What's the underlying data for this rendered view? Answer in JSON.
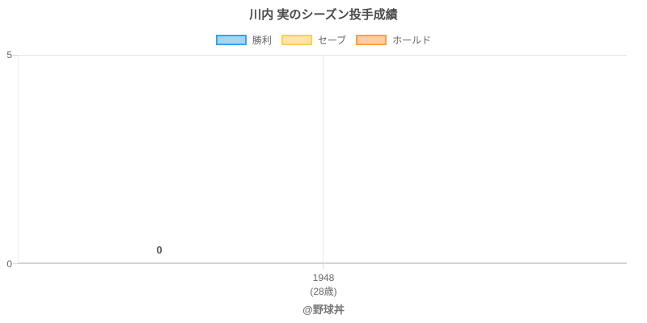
{
  "title": "川内 実のシーズン投手成績",
  "legend": {
    "items": [
      {
        "label": "勝利",
        "fill": "#A5D5F6",
        "border": "#36A2EB"
      },
      {
        "label": "セーブ",
        "fill": "#FFE3A9",
        "border": "#FFCE56"
      },
      {
        "label": "ホールド",
        "fill": "#FFCDA0",
        "border": "#FF9F40"
      }
    ]
  },
  "y_axis": {
    "max_label": "5",
    "min_label": "0"
  },
  "x_axis": {
    "tick_line1": "1948",
    "tick_line2": "(28歳)"
  },
  "value_label": "0",
  "footer": "@野球丼",
  "chart_data": {
    "type": "bar",
    "title": "川内 実のシーズン投手成績",
    "categories": [
      "1948 (28歳)"
    ],
    "series": [
      {
        "name": "勝利",
        "values": [
          0
        ],
        "border_color": "#36A2EB",
        "fill_color": "#A5D5F6"
      },
      {
        "name": "セーブ",
        "values": [
          0
        ],
        "border_color": "#FFCE56",
        "fill_color": "#FFE3A9"
      },
      {
        "name": "ホールド",
        "values": [
          0
        ],
        "border_color": "#FF9F40",
        "fill_color": "#FFCDA0"
      }
    ],
    "ylim": [
      0,
      5
    ],
    "xlabel": "",
    "ylabel": "",
    "legend_position": "top",
    "grid": "horizontal line at y=5 only; one vertical gridline at category center; x-axis baseline at y=0",
    "annotations": [
      {
        "text": "0",
        "series": "勝利",
        "category": "1948 (28歳)",
        "position": "above first bar"
      }
    ]
  }
}
